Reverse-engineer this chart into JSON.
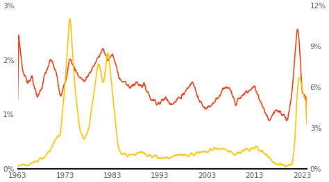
{
  "background_color": "#ffffff",
  "line_red_color": "#E8380D",
  "line_yellow_color": "#FFC200",
  "left_ylim": [
    0,
    0.03
  ],
  "right_ylim": [
    0,
    0.12
  ],
  "left_yticks": [
    0.0,
    0.01,
    0.02,
    0.03
  ],
  "left_yticklabels": [
    "0%",
    "1%",
    "2%",
    "3%"
  ],
  "right_yticks": [
    0.0,
    0.03,
    0.06,
    0.09,
    0.12
  ],
  "right_yticklabels": [
    "0%",
    "3%",
    "6%",
    "9%",
    "12%"
  ],
  "xticks": [
    1963,
    1973,
    1983,
    1993,
    2003,
    2013,
    2023
  ],
  "xticklabels": [
    "1963",
    "1973",
    "1983",
    "1993",
    "2003",
    "2013",
    "2023"
  ],
  "xlim": [
    1963,
    2024
  ],
  "figsize": [
    4.74,
    2.63
  ],
  "dpi": 100
}
